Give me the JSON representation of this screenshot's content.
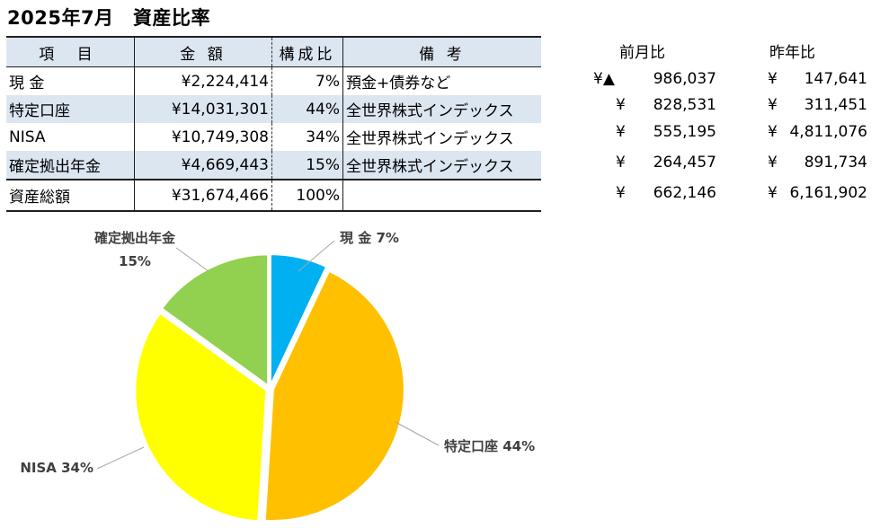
{
  "title": "2025年7月　資産比率",
  "table": {
    "headers": [
      "項 目",
      "金 額",
      "構成比",
      "備 考"
    ],
    "rows": [
      {
        "item": "現 金",
        "amount": "¥2,224,414",
        "ratio": "7%",
        "note": "預金+債券など"
      },
      {
        "item": "特定口座",
        "amount": "¥14,031,301",
        "ratio": "44%",
        "note": "全世界株式インデックス"
      },
      {
        "item": "NISA",
        "amount": "¥10,749,308",
        "ratio": "34%",
        "note": "全世界株式インデックス"
      },
      {
        "item": "確定拠出年金",
        "amount": "¥4,669,443",
        "ratio": "15%",
        "note": "全世界株式インデックス"
      }
    ],
    "total": {
      "item": "資産総額",
      "amount": "¥31,674,466",
      "ratio": "100%",
      "note": ""
    }
  },
  "comparison": {
    "headers": {
      "prev_month": "前月比",
      "prev_year": "昨年比"
    },
    "rows": [
      {
        "prev_month_prefix": "¥▲",
        "prev_month": "986,037",
        "prev_year_prefix": "¥",
        "prev_year": "147,641"
      },
      {
        "prev_month_prefix": "¥",
        "prev_month": "828,531",
        "prev_year_prefix": "¥",
        "prev_year": "311,451"
      },
      {
        "prev_month_prefix": "¥",
        "prev_month": "555,195",
        "prev_year_prefix": "¥",
        "prev_year": "4,811,076"
      },
      {
        "prev_month_prefix": "¥",
        "prev_month": "264,457",
        "prev_year_prefix": "¥",
        "prev_year": "891,734"
      },
      {
        "prev_month_prefix": "¥",
        "prev_month": "662,146",
        "prev_year_prefix": "¥",
        "prev_year": "6,161,902"
      }
    ]
  },
  "chart_data": {
    "type": "pie",
    "categories": [
      "現 金",
      "特定口座",
      "NISA",
      "確定拠出年金"
    ],
    "values": [
      7,
      44,
      34,
      15
    ],
    "labels": [
      "現 金 7%",
      "特定口座 44%",
      "NISA 34%",
      "確定拠出年金 15%"
    ],
    "colors": [
      "#00b0f0",
      "#ffc000",
      "#ffff00",
      "#92d050"
    ],
    "legend": "none"
  }
}
